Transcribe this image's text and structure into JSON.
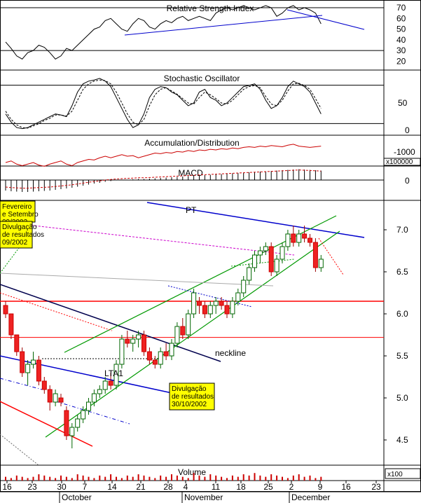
{
  "chart_data": {
    "type": "candlestick",
    "instrument_panels": [
      {
        "name": "rsi",
        "title": "Relative Strength Index",
        "ticks": [
          "70",
          "60",
          "50",
          "40",
          "30",
          "20"
        ]
      },
      {
        "name": "stochastic",
        "title": "Stochastic Oscillator",
        "ticks": [
          "50",
          "0"
        ]
      },
      {
        "name": "accdist",
        "title": "Accumulation/Distribution",
        "ticks": [
          "-1000"
        ],
        "multiplier": "x100000"
      },
      {
        "name": "macd",
        "title": "MACD",
        "ticks": [
          "0"
        ]
      },
      {
        "name": "volume",
        "title": "Volume",
        "multiplier": "x100"
      }
    ],
    "price_axis": {
      "ticks": [
        "7.0",
        "6.5",
        "6.0",
        "5.5",
        "5.0",
        "4.5"
      ],
      "ylim": [
        4.2,
        7.35
      ]
    },
    "x_axis": {
      "day_ticks": [
        "16",
        "23",
        "30",
        "7",
        "14",
        "21",
        "28",
        "4",
        "11",
        "18",
        "25",
        "2",
        "9",
        "16",
        "23"
      ],
      "months": [
        "October",
        "November",
        "December"
      ]
    },
    "annotations": {
      "pt": "PT",
      "neckline": "neckline",
      "lta1": "LTA1",
      "box_mid": {
        "line1": "Divulgação",
        "line2": "de resultados",
        "line3": "30/10/2002"
      },
      "box_top1": {
        "line1": "Fevereiro",
        "line2": "e Setembro",
        "line3": "09/2002"
      },
      "box_top2": {
        "line1": "Divulgação",
        "line2": "de resultados",
        "line3": "09/2002"
      }
    },
    "candles": [
      {
        "date": "2002-09-16",
        "open": 6.1,
        "high": 6.15,
        "low": 5.95,
        "close": 6.0
      },
      {
        "date": "2002-09-17",
        "open": 6.0,
        "high": 6.0,
        "low": 5.7,
        "close": 5.75
      },
      {
        "date": "2002-09-18",
        "open": 5.75,
        "high": 5.75,
        "low": 5.5,
        "close": 5.55
      },
      {
        "date": "2002-09-19",
        "open": 5.55,
        "high": 5.6,
        "low": 5.25,
        "close": 5.3
      },
      {
        "date": "2002-09-20",
        "open": 5.3,
        "high": 5.45,
        "low": 5.15,
        "close": 5.4
      },
      {
        "date": "2002-09-23",
        "open": 5.4,
        "high": 5.55,
        "low": 5.35,
        "close": 5.45
      },
      {
        "date": "2002-09-24",
        "open": 5.45,
        "high": 5.5,
        "low": 5.15,
        "close": 5.2
      },
      {
        "date": "2002-09-25",
        "open": 5.2,
        "high": 5.25,
        "low": 5.05,
        "close": 5.1
      },
      {
        "date": "2002-09-26",
        "open": 5.1,
        "high": 5.15,
        "low": 4.85,
        "close": 4.95
      },
      {
        "date": "2002-09-27",
        "open": 4.95,
        "high": 5.1,
        "low": 4.9,
        "close": 5.05
      },
      {
        "date": "2002-09-30",
        "open": 5.0,
        "high": 5.05,
        "low": 4.9,
        "close": 4.95
      },
      {
        "date": "2002-10-01",
        "open": 4.85,
        "high": 4.9,
        "low": 4.5,
        "close": 4.55
      },
      {
        "date": "2002-10-02",
        "open": 4.55,
        "high": 4.7,
        "low": 4.4,
        "close": 4.65
      },
      {
        "date": "2002-10-03",
        "open": 4.65,
        "high": 4.8,
        "low": 4.6,
        "close": 4.75
      },
      {
        "date": "2002-10-04",
        "open": 4.75,
        "high": 4.9,
        "low": 4.7,
        "close": 4.85
      },
      {
        "date": "2002-10-07",
        "open": 4.85,
        "high": 5.0,
        "low": 4.8,
        "close": 4.95
      },
      {
        "date": "2002-10-08",
        "open": 4.95,
        "high": 5.1,
        "low": 4.9,
        "close": 5.05
      },
      {
        "date": "2002-10-09",
        "open": 5.05,
        "high": 5.15,
        "low": 5.0,
        "close": 5.1
      },
      {
        "date": "2002-10-10",
        "open": 5.1,
        "high": 5.25,
        "low": 5.05,
        "close": 5.2
      },
      {
        "date": "2002-10-11",
        "open": 5.2,
        "high": 5.3,
        "low": 5.1,
        "close": 5.15
      },
      {
        "date": "2002-10-14",
        "open": 5.15,
        "high": 5.45,
        "low": 5.1,
        "close": 5.4
      },
      {
        "date": "2002-10-15",
        "open": 5.4,
        "high": 5.75,
        "low": 5.35,
        "close": 5.7
      },
      {
        "date": "2002-10-16",
        "open": 5.7,
        "high": 5.8,
        "low": 5.6,
        "close": 5.65
      },
      {
        "date": "2002-10-17",
        "open": 5.65,
        "high": 5.75,
        "low": 5.55,
        "close": 5.7
      },
      {
        "date": "2002-10-18",
        "open": 5.7,
        "high": 5.8,
        "low": 5.6,
        "close": 5.75
      },
      {
        "date": "2002-10-21",
        "open": 5.75,
        "high": 5.8,
        "low": 5.5,
        "close": 5.55
      },
      {
        "date": "2002-10-22",
        "open": 5.55,
        "high": 5.6,
        "low": 5.4,
        "close": 5.45
      },
      {
        "date": "2002-10-23",
        "open": 5.45,
        "high": 5.5,
        "low": 5.35,
        "close": 5.4
      },
      {
        "date": "2002-10-24",
        "open": 5.4,
        "high": 5.6,
        "low": 5.35,
        "close": 5.55
      },
      {
        "date": "2002-10-25",
        "open": 5.55,
        "high": 5.65,
        "low": 5.45,
        "close": 5.5
      },
      {
        "date": "2002-10-28",
        "open": 5.5,
        "high": 5.7,
        "low": 5.45,
        "close": 5.65
      },
      {
        "date": "2002-10-29",
        "open": 5.65,
        "high": 5.9,
        "low": 5.6,
        "close": 5.85
      },
      {
        "date": "2002-10-30",
        "open": 5.85,
        "high": 5.95,
        "low": 5.7,
        "close": 5.75
      },
      {
        "date": "2002-10-31",
        "open": 5.75,
        "high": 6.05,
        "low": 5.7,
        "close": 6.0
      },
      {
        "date": "2002-11-01",
        "open": 6.0,
        "high": 6.3,
        "low": 5.95,
        "close": 6.25
      },
      {
        "date": "2002-11-04",
        "open": 6.15,
        "high": 6.2,
        "low": 6.0,
        "close": 6.1
      },
      {
        "date": "2002-11-05",
        "open": 6.1,
        "high": 6.15,
        "low": 5.95,
        "close": 6.0
      },
      {
        "date": "2002-11-06",
        "open": 6.0,
        "high": 6.15,
        "low": 5.95,
        "close": 6.1
      },
      {
        "date": "2002-11-07",
        "open": 6.1,
        "high": 6.2,
        "low": 6.0,
        "close": 6.15
      },
      {
        "date": "2002-11-08",
        "open": 6.15,
        "high": 6.2,
        "low": 6.05,
        "close": 6.1
      },
      {
        "date": "2002-11-11",
        "open": 6.1,
        "high": 6.15,
        "low": 5.95,
        "close": 6.0
      },
      {
        "date": "2002-11-12",
        "open": 6.0,
        "high": 6.2,
        "low": 5.95,
        "close": 6.15
      },
      {
        "date": "2002-11-13",
        "open": 6.15,
        "high": 6.3,
        "low": 6.1,
        "close": 6.25
      },
      {
        "date": "2002-11-14",
        "open": 6.25,
        "high": 6.45,
        "low": 6.2,
        "close": 6.4
      },
      {
        "date": "2002-11-15",
        "open": 6.4,
        "high": 6.6,
        "low": 6.35,
        "close": 6.55
      },
      {
        "date": "2002-11-18",
        "open": 6.55,
        "high": 6.75,
        "low": 6.5,
        "close": 6.7
      },
      {
        "date": "2002-11-19",
        "open": 6.7,
        "high": 6.8,
        "low": 6.6,
        "close": 6.75
      },
      {
        "date": "2002-11-20",
        "open": 6.75,
        "high": 6.85,
        "low": 6.7,
        "close": 6.8
      },
      {
        "date": "2002-11-21",
        "open": 6.8,
        "high": 6.85,
        "low": 6.45,
        "close": 6.5
      },
      {
        "date": "2002-11-22",
        "open": 6.5,
        "high": 6.7,
        "low": 6.45,
        "close": 6.65
      },
      {
        "date": "2002-11-25",
        "open": 6.65,
        "high": 6.85,
        "low": 6.6,
        "close": 6.8
      },
      {
        "date": "2002-11-26",
        "open": 6.8,
        "high": 7.0,
        "low": 6.75,
        "close": 6.95
      },
      {
        "date": "2002-11-27",
        "open": 6.95,
        "high": 7.05,
        "low": 6.8,
        "close": 6.85
      },
      {
        "date": "2002-11-28",
        "open": 6.85,
        "high": 7.0,
        "low": 6.8,
        "close": 6.95
      },
      {
        "date": "2002-11-29",
        "open": 6.95,
        "high": 7.05,
        "low": 6.85,
        "close": 6.9
      },
      {
        "date": "2002-12-02",
        "open": 6.9,
        "high": 6.95,
        "low": 6.8,
        "close": 6.85
      },
      {
        "date": "2002-12-03",
        "open": 6.85,
        "high": 6.9,
        "low": 6.5,
        "close": 6.55
      },
      {
        "date": "2002-12-04",
        "open": 6.55,
        "high": 6.7,
        "low": 6.5,
        "close": 6.65
      }
    ],
    "rsi": [
      38,
      32,
      25,
      22,
      28,
      30,
      35,
      33,
      28,
      22,
      25,
      32,
      30,
      35,
      40,
      45,
      50,
      52,
      58,
      60,
      55,
      50,
      48,
      55,
      60,
      58,
      52,
      50,
      55,
      58,
      56,
      60,
      62,
      58,
      60,
      62,
      60,
      58,
      65,
      68,
      70,
      68,
      70,
      72,
      70,
      68,
      70,
      72,
      70,
      62,
      65,
      70,
      72,
      68,
      70,
      68,
      65,
      55
    ],
    "stoch_k": [
      30,
      15,
      5,
      3,
      5,
      10,
      15,
      20,
      25,
      30,
      28,
      25,
      45,
      70,
      85,
      90,
      92,
      95,
      90,
      80,
      60,
      40,
      20,
      5,
      10,
      30,
      60,
      75,
      80,
      78,
      70,
      65,
      55,
      45,
      50,
      70,
      75,
      60,
      55,
      45,
      50,
      60,
      70,
      80,
      82,
      85,
      75,
      55,
      40,
      45,
      60,
      80,
      90,
      85,
      80,
      70,
      50,
      30
    ],
    "stoch_d": [
      35,
      20,
      10,
      5,
      4,
      8,
      12,
      18,
      22,
      28,
      28,
      26,
      35,
      55,
      75,
      85,
      90,
      92,
      91,
      85,
      70,
      50,
      30,
      15,
      10,
      20,
      45,
      65,
      75,
      78,
      72,
      66,
      58,
      50,
      48,
      60,
      70,
      65,
      58,
      50,
      48,
      55,
      65,
      75,
      80,
      82,
      78,
      62,
      48,
      45,
      55,
      72,
      85,
      86,
      82,
      75,
      58,
      40
    ],
    "accdist": [
      -1200,
      -1150,
      -1250,
      -1300,
      -1250,
      -1200,
      -1280,
      -1320,
      -1250,
      -1200,
      -1150,
      -1250,
      -1300,
      -1200,
      -1150,
      -1100,
      -1120,
      -1050,
      -1000,
      -1050,
      -1000,
      -950,
      -1000,
      -980,
      -1050,
      -1000,
      -950,
      -900,
      -920,
      -880,
      -900,
      -850,
      -870,
      -820,
      -850,
      -800,
      -820,
      -780,
      -800,
      -760,
      -780,
      -740,
      -760,
      -720,
      -700,
      -720,
      -680,
      -700,
      -660,
      -680,
      -700,
      -650,
      -620,
      -680,
      -700,
      -720,
      -700,
      -680
    ],
    "macd": [
      -0.3,
      -0.32,
      -0.33,
      -0.34,
      -0.34,
      -0.33,
      -0.32,
      -0.31,
      -0.3,
      -0.28,
      -0.26,
      -0.24,
      -0.22,
      -0.19,
      -0.16,
      -0.13,
      -0.1,
      -0.08,
      -0.05,
      -0.03,
      -0.01,
      0.0,
      0.01,
      0.02,
      0.03,
      0.03,
      0.04,
      0.05,
      0.06,
      0.07,
      0.08,
      0.09,
      0.1,
      0.11,
      0.12,
      0.13,
      0.14,
      0.15,
      0.16,
      0.17,
      0.18,
      0.19,
      0.2,
      0.21,
      0.22,
      0.23,
      0.24,
      0.25,
      0.26,
      0.27,
      0.28,
      0.29,
      0.3,
      0.31,
      0.3,
      0.29,
      0.28,
      0.27
    ],
    "volume": [
      3,
      2,
      4,
      3,
      2,
      3,
      5,
      4,
      3,
      2,
      4,
      3,
      2,
      5,
      4,
      3,
      2,
      4,
      3,
      5,
      3,
      2,
      4,
      3,
      5,
      4,
      3,
      2,
      4,
      3,
      5,
      4,
      3,
      2,
      6,
      4,
      3,
      5,
      4,
      3,
      2,
      4,
      3,
      5,
      4,
      6,
      4,
      3,
      5,
      4,
      3,
      2,
      4,
      5,
      3,
      4,
      2,
      3
    ]
  }
}
